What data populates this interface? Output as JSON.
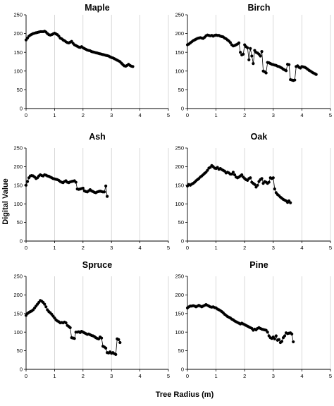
{
  "figure": {
    "xlabel": "Tree Radius (m)",
    "ylabel": "Digital Value"
  },
  "chart_data": [
    {
      "type": "line",
      "title": "Maple",
      "xlim": [
        0,
        5
      ],
      "ylim": [
        0,
        250
      ],
      "xticks": [
        0,
        1,
        2,
        3,
        4,
        5
      ],
      "yticks": [
        0,
        50,
        100,
        150,
        200,
        250
      ],
      "grid": "vertical",
      "x": [
        0.0,
        0.05,
        0.1,
        0.15,
        0.2,
        0.25,
        0.3,
        0.35,
        0.4,
        0.45,
        0.5,
        0.55,
        0.6,
        0.65,
        0.7,
        0.75,
        0.8,
        0.85,
        0.9,
        0.95,
        1.0,
        1.05,
        1.1,
        1.15,
        1.2,
        1.25,
        1.3,
        1.35,
        1.4,
        1.45,
        1.5,
        1.55,
        1.6,
        1.65,
        1.7,
        1.75,
        1.8,
        1.85,
        1.9,
        1.95,
        2.0,
        2.05,
        2.1,
        2.15,
        2.2,
        2.25,
        2.3,
        2.35,
        2.4,
        2.45,
        2.5,
        2.55,
        2.6,
        2.65,
        2.7,
        2.75,
        2.8,
        2.85,
        2.9,
        2.95,
        3.0,
        3.05,
        3.1,
        3.15,
        3.2,
        3.25,
        3.3,
        3.35,
        3.4,
        3.45,
        3.5,
        3.55,
        3.6,
        3.65,
        3.7,
        3.75
      ],
      "y": [
        183,
        188,
        193,
        196,
        198,
        200,
        201,
        202,
        203,
        204,
        205,
        205,
        205,
        206,
        204,
        200,
        197,
        196,
        197,
        199,
        201,
        199,
        197,
        193,
        188,
        186,
        183,
        181,
        178,
        176,
        175,
        177,
        179,
        174,
        170,
        168,
        166,
        164,
        163,
        165,
        162,
        160,
        158,
        156,
        155,
        154,
        152,
        151,
        150,
        149,
        148,
        147,
        146,
        145,
        144,
        143,
        142,
        141,
        140,
        138,
        136,
        135,
        133,
        131,
        129,
        127,
        125,
        121,
        117,
        114,
        113,
        115,
        118,
        115,
        113,
        112
      ]
    },
    {
      "type": "line",
      "title": "Birch",
      "xlim": [
        0,
        5
      ],
      "ylim": [
        0,
        250
      ],
      "xticks": [
        0,
        1,
        2,
        3,
        4,
        5
      ],
      "yticks": [
        0,
        50,
        100,
        150,
        200,
        250
      ],
      "grid": "vertical",
      "x": [
        0.0,
        0.05,
        0.1,
        0.15,
        0.2,
        0.25,
        0.3,
        0.35,
        0.4,
        0.45,
        0.5,
        0.55,
        0.6,
        0.65,
        0.7,
        0.75,
        0.8,
        0.85,
        0.9,
        0.95,
        1.0,
        1.05,
        1.1,
        1.15,
        1.2,
        1.25,
        1.3,
        1.35,
        1.4,
        1.45,
        1.5,
        1.55,
        1.6,
        1.65,
        1.7,
        1.75,
        1.8,
        1.85,
        1.9,
        1.95,
        2.0,
        2.05,
        2.1,
        2.15,
        2.2,
        2.25,
        2.3,
        2.35,
        2.4,
        2.45,
        2.5,
        2.55,
        2.6,
        2.65,
        2.7,
        2.75,
        2.8,
        2.85,
        2.9,
        2.95,
        3.0,
        3.05,
        3.1,
        3.15,
        3.2,
        3.25,
        3.3,
        3.35,
        3.4,
        3.45,
        3.5,
        3.55,
        3.6,
        3.65,
        3.7,
        3.75,
        3.8,
        3.85,
        3.9,
        3.95,
        4.0,
        4.05,
        4.1,
        4.15,
        4.2,
        4.25,
        4.3,
        4.35,
        4.4,
        4.45,
        4.5
      ],
      "y": [
        170,
        172,
        175,
        178,
        181,
        183,
        185,
        187,
        188,
        189,
        188,
        187,
        190,
        194,
        196,
        195,
        194,
        195,
        193,
        195,
        196,
        195,
        195,
        193,
        192,
        191,
        188,
        186,
        183,
        180,
        176,
        170,
        167,
        168,
        170,
        172,
        175,
        150,
        143,
        145,
        170,
        165,
        162,
        130,
        160,
        140,
        120,
        155,
        150,
        148,
        145,
        140,
        152,
        100,
        98,
        95,
        123,
        122,
        120,
        118,
        117,
        116,
        115,
        113,
        112,
        110,
        108,
        105,
        103,
        101,
        118,
        117,
        77,
        76,
        75,
        76,
        112,
        114,
        110,
        108,
        112,
        111,
        110,
        108,
        105,
        102,
        100,
        97,
        95,
        93,
        91
      ]
    },
    {
      "type": "line",
      "title": "Ash",
      "xlim": [
        0,
        5
      ],
      "ylim": [
        0,
        250
      ],
      "xticks": [
        0,
        1,
        2,
        3,
        4,
        5
      ],
      "yticks": [
        0,
        50,
        100,
        150,
        200,
        250
      ],
      "grid": "vertical",
      "x": [
        0.0,
        0.05,
        0.1,
        0.15,
        0.2,
        0.25,
        0.3,
        0.35,
        0.4,
        0.45,
        0.5,
        0.55,
        0.6,
        0.65,
        0.7,
        0.75,
        0.8,
        0.85,
        0.9,
        0.95,
        1.0,
        1.05,
        1.1,
        1.15,
        1.2,
        1.25,
        1.3,
        1.35,
        1.4,
        1.45,
        1.5,
        1.55,
        1.6,
        1.65,
        1.7,
        1.75,
        1.8,
        1.85,
        1.9,
        1.95,
        2.0,
        2.05,
        2.1,
        2.15,
        2.2,
        2.25,
        2.3,
        2.35,
        2.4,
        2.45,
        2.5,
        2.55,
        2.6,
        2.65,
        2.7,
        2.75,
        2.8,
        2.85
      ],
      "y": [
        150,
        160,
        170,
        175,
        176,
        175,
        172,
        168,
        170,
        175,
        178,
        176,
        175,
        178,
        177,
        175,
        174,
        172,
        170,
        168,
        167,
        166,
        165,
        163,
        160,
        158,
        157,
        160,
        162,
        158,
        157,
        159,
        160,
        161,
        162,
        158,
        140,
        139,
        140,
        141,
        142,
        135,
        133,
        132,
        135,
        138,
        135,
        133,
        131,
        130,
        132,
        133,
        134,
        133,
        132,
        132,
        148,
        120
      ]
    },
    {
      "type": "line",
      "title": "Oak",
      "xlim": [
        0,
        5
      ],
      "ylim": [
        0,
        250
      ],
      "xticks": [
        0,
        1,
        2,
        3,
        4,
        5
      ],
      "yticks": [
        0,
        50,
        100,
        150,
        200,
        250
      ],
      "grid": "vertical",
      "x": [
        0.0,
        0.05,
        0.1,
        0.15,
        0.2,
        0.25,
        0.3,
        0.35,
        0.4,
        0.45,
        0.5,
        0.55,
        0.6,
        0.65,
        0.7,
        0.75,
        0.8,
        0.85,
        0.9,
        0.95,
        1.0,
        1.05,
        1.1,
        1.15,
        1.2,
        1.25,
        1.3,
        1.35,
        1.4,
        1.45,
        1.5,
        1.55,
        1.6,
        1.65,
        1.7,
        1.75,
        1.8,
        1.85,
        1.9,
        1.95,
        2.0,
        2.05,
        2.1,
        2.15,
        2.2,
        2.25,
        2.3,
        2.35,
        2.4,
        2.45,
        2.5,
        2.55,
        2.6,
        2.65,
        2.7,
        2.75,
        2.8,
        2.85,
        2.9,
        2.95,
        3.0,
        3.05,
        3.1,
        3.15,
        3.2,
        3.25,
        3.3,
        3.35,
        3.4,
        3.45,
        3.5,
        3.55,
        3.6
      ],
      "y": [
        148,
        152,
        150,
        153,
        155,
        158,
        162,
        165,
        168,
        172,
        175,
        178,
        182,
        185,
        190,
        196,
        198,
        203,
        200,
        196,
        195,
        198,
        193,
        195,
        192,
        190,
        188,
        183,
        185,
        183,
        180,
        180,
        185,
        178,
        172,
        170,
        172,
        175,
        178,
        172,
        168,
        165,
        163,
        168,
        170,
        158,
        155,
        152,
        145,
        150,
        160,
        165,
        168,
        155,
        160,
        158,
        155,
        158,
        170,
        168,
        170,
        140,
        130,
        125,
        122,
        118,
        115,
        112,
        110,
        108,
        104,
        108,
        103
      ]
    },
    {
      "type": "line",
      "title": "Spruce",
      "xlim": [
        0,
        5
      ],
      "ylim": [
        0,
        250
      ],
      "xticks": [
        0,
        1,
        2,
        3,
        4,
        5
      ],
      "yticks": [
        0,
        50,
        100,
        150,
        200,
        250
      ],
      "grid": "vertical",
      "x": [
        0.0,
        0.05,
        0.1,
        0.15,
        0.2,
        0.25,
        0.3,
        0.35,
        0.4,
        0.45,
        0.5,
        0.55,
        0.6,
        0.65,
        0.7,
        0.75,
        0.8,
        0.85,
        0.9,
        0.95,
        1.0,
        1.05,
        1.1,
        1.15,
        1.2,
        1.25,
        1.3,
        1.35,
        1.4,
        1.45,
        1.5,
        1.55,
        1.6,
        1.65,
        1.7,
        1.75,
        1.8,
        1.85,
        1.9,
        1.95,
        2.0,
        2.05,
        2.1,
        2.15,
        2.2,
        2.25,
        2.3,
        2.35,
        2.4,
        2.45,
        2.5,
        2.55,
        2.6,
        2.65,
        2.7,
        2.75,
        2.8,
        2.85,
        2.9,
        2.95,
        3.0,
        3.05,
        3.1,
        3.15,
        3.2,
        3.25,
        3.3
      ],
      "y": [
        145,
        150,
        153,
        155,
        157,
        160,
        165,
        170,
        175,
        180,
        185,
        183,
        180,
        175,
        168,
        160,
        155,
        152,
        148,
        143,
        138,
        133,
        130,
        128,
        125,
        126,
        125,
        127,
        125,
        118,
        115,
        112,
        85,
        84,
        83,
        100,
        100,
        101,
        99,
        102,
        100,
        98,
        96,
        94,
        95,
        93,
        91,
        90,
        88,
        85,
        83,
        82,
        87,
        84,
        62,
        60,
        57,
        45,
        44,
        47,
        43,
        45,
        42,
        40,
        82,
        80,
        72
      ]
    },
    {
      "type": "line",
      "title": "Pine",
      "xlim": [
        0,
        5
      ],
      "ylim": [
        0,
        250
      ],
      "xticks": [
        0,
        1,
        2,
        3,
        4,
        5
      ],
      "yticks": [
        0,
        50,
        100,
        150,
        200,
        250
      ],
      "grid": "vertical",
      "x": [
        0.0,
        0.05,
        0.1,
        0.15,
        0.2,
        0.25,
        0.3,
        0.35,
        0.4,
        0.45,
        0.5,
        0.55,
        0.6,
        0.65,
        0.7,
        0.75,
        0.8,
        0.85,
        0.9,
        0.95,
        1.0,
        1.05,
        1.1,
        1.15,
        1.2,
        1.25,
        1.3,
        1.35,
        1.4,
        1.45,
        1.5,
        1.55,
        1.6,
        1.65,
        1.7,
        1.75,
        1.8,
        1.85,
        1.9,
        1.95,
        2.0,
        2.05,
        2.1,
        2.15,
        2.2,
        2.25,
        2.3,
        2.35,
        2.4,
        2.45,
        2.5,
        2.55,
        2.6,
        2.65,
        2.7,
        2.75,
        2.8,
        2.85,
        2.9,
        2.95,
        3.0,
        3.05,
        3.1,
        3.15,
        3.2,
        3.25,
        3.3,
        3.35,
        3.4,
        3.45,
        3.5,
        3.55,
        3.6,
        3.65,
        3.7
      ],
      "y": [
        165,
        168,
        170,
        170,
        171,
        170,
        168,
        170,
        172,
        170,
        168,
        170,
        172,
        174,
        172,
        170,
        168,
        167,
        168,
        166,
        165,
        162,
        160,
        158,
        155,
        152,
        148,
        145,
        142,
        140,
        138,
        135,
        133,
        130,
        128,
        126,
        124,
        122,
        124,
        122,
        120,
        118,
        116,
        114,
        112,
        110,
        105,
        108,
        106,
        110,
        112,
        110,
        108,
        107,
        106,
        105,
        100,
        90,
        85,
        83,
        87,
        82,
        90,
        78,
        80,
        72,
        75,
        85,
        90,
        98,
        96,
        97,
        98,
        95,
        74
      ]
    }
  ]
}
